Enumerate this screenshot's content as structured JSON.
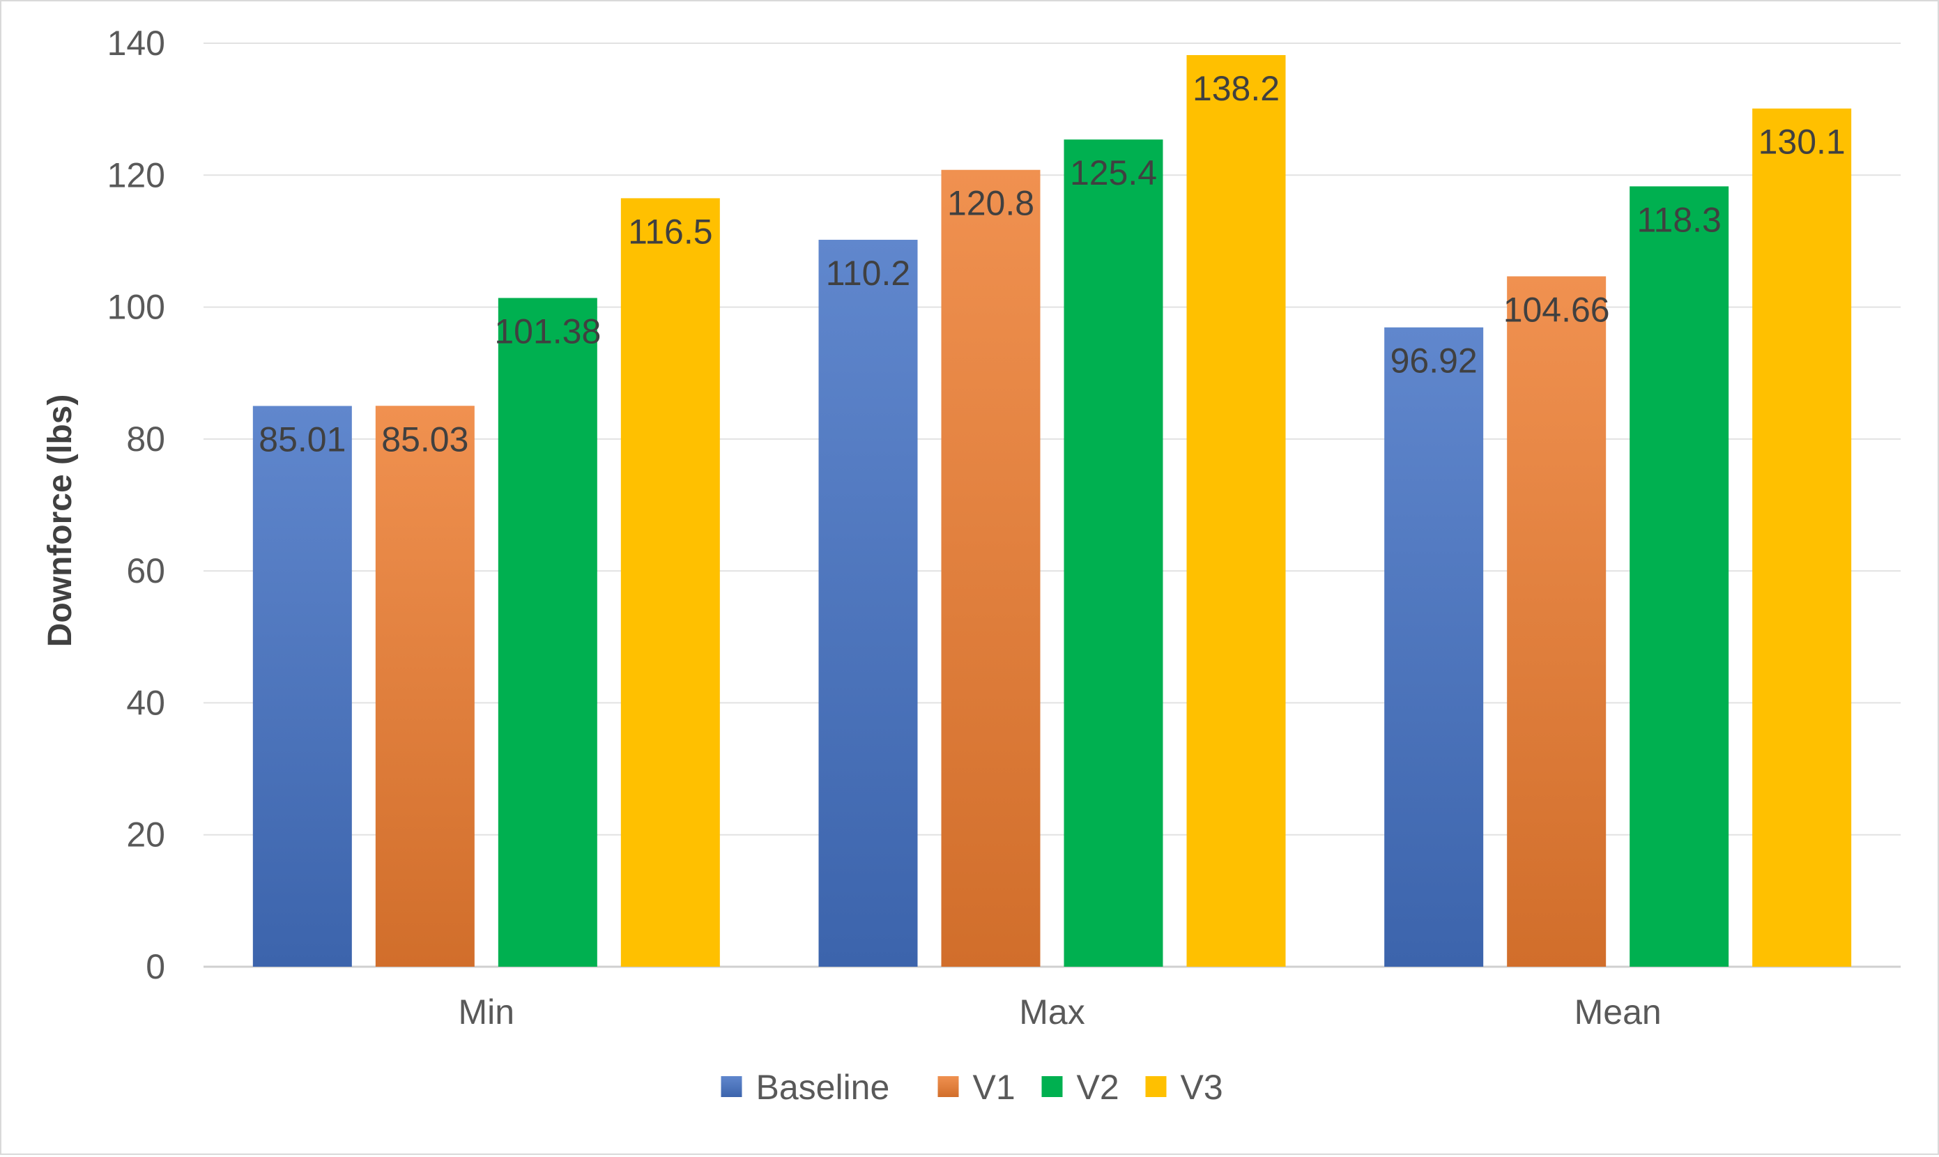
{
  "chart_data": {
    "type": "bar",
    "title": "",
    "xlabel": "",
    "ylabel": "Downforce (lbs)",
    "ylim": [
      0,
      140
    ],
    "yticks": [
      0,
      20,
      40,
      60,
      80,
      100,
      120,
      140
    ],
    "grid": true,
    "legend_position": "bottom",
    "categories": [
      "Min",
      "Max",
      "Mean"
    ],
    "series": [
      {
        "name": "Baseline",
        "color": "#4472c4",
        "values": [
          85.01,
          110.2,
          96.92
        ],
        "labels": [
          "85.01",
          "110.2",
          "96.92"
        ]
      },
      {
        "name": "V1",
        "color": "#ed7d31",
        "values": [
          85.03,
          120.8,
          104.66
        ],
        "labels": [
          "85.03",
          "120.8",
          "104.66"
        ]
      },
      {
        "name": "V2",
        "color": "#00b050",
        "values": [
          101.38,
          125.4,
          118.3
        ],
        "labels": [
          "101.38",
          "125.4",
          "118.3"
        ]
      },
      {
        "name": "V3",
        "color": "#ffc000",
        "values": [
          116.5,
          138.2,
          130.1
        ],
        "labels": [
          "116.5",
          "138.2",
          "130.1"
        ]
      }
    ]
  }
}
